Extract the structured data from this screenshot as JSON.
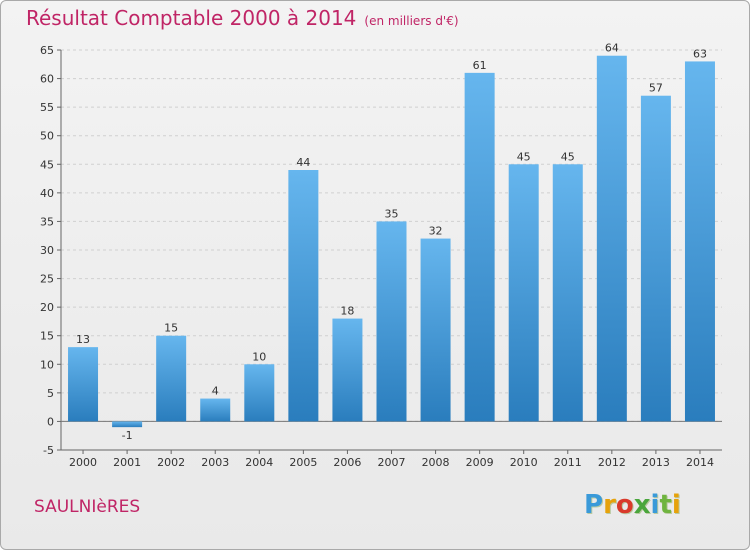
{
  "header": {
    "title": "Résultat Comptable 2000 à 2014",
    "unit": "(en milliers d'€)"
  },
  "footer": {
    "place": "SAULNIèRES",
    "brand": "Proxiti",
    "brand_colors": [
      "#3a9ad9",
      "#e6a20b",
      "#d93a2b",
      "#4aa63c",
      "#3a9ad9",
      "#6fb43f",
      "#e6a20b"
    ]
  },
  "colors": {
    "title": "#c02566",
    "bar_light": "#66b6ee",
    "bar_dark": "#2a7dbd",
    "grid": "#d0d0d0"
  },
  "chart_data": {
    "type": "bar",
    "title": "Résultat Comptable 2000 à 2014",
    "subtitle": "(en milliers d'€)",
    "categories": [
      "2000",
      "2001",
      "2002",
      "2003",
      "2004",
      "2005",
      "2006",
      "2007",
      "2008",
      "2009",
      "2010",
      "2011",
      "2012",
      "2013",
      "2014"
    ],
    "values": [
      13,
      -1,
      15,
      4,
      10,
      44,
      18,
      35,
      32,
      61,
      45,
      45,
      64,
      57,
      63
    ],
    "ylim": [
      -5,
      65
    ],
    "yticks": [
      -5,
      0,
      5,
      10,
      15,
      20,
      25,
      30,
      35,
      40,
      45,
      50,
      55,
      60,
      65
    ],
    "grid": true,
    "xlabel": "",
    "ylabel": ""
  }
}
